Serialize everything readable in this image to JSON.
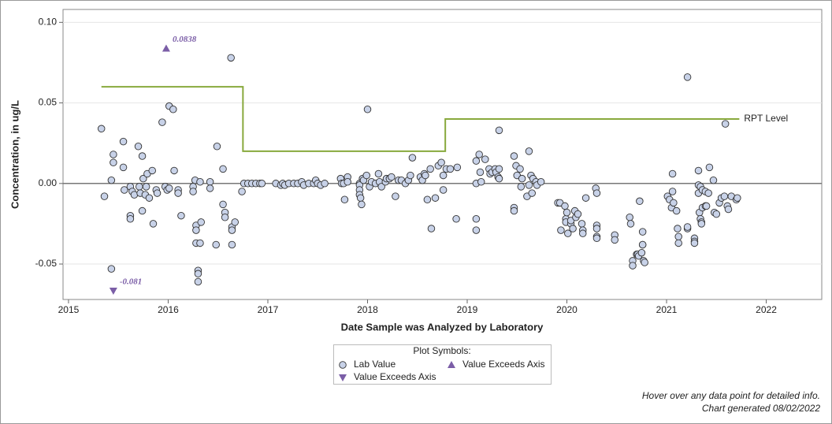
{
  "chart_data": {
    "type": "scatter",
    "y_label": "Concentration, in ug/L",
    "x_label": "Date Sample was Analyzed by Laboratory",
    "xlim": [
      2014.945,
      2022.557
    ],
    "xticks": [
      2015,
      2016,
      2017,
      2018,
      2019,
      2020,
      2021,
      2022
    ],
    "ylim": [
      -0.072,
      0.108
    ],
    "yticks": [
      {
        "value": -0.05,
        "label": "-0.05"
      },
      {
        "value": 0,
        "label": "0.00"
      },
      {
        "value": 0.05,
        "label": "0.05"
      },
      {
        "value": 0.1,
        "label": "0.10"
      }
    ],
    "grid": true,
    "reference_line": 0,
    "series": [
      {
        "name": "Lab Value",
        "color": "#c8d2e8",
        "line": false,
        "x": [
          2015.33,
          2015.36,
          2015.43,
          2015.45,
          2015.45,
          2015.43,
          2015.55,
          2015.55,
          2015.56,
          2015.62,
          2015.62,
          2015.62,
          2015.64,
          2015.66,
          2015.7,
          2015.71,
          2015.72,
          2015.74,
          2015.74,
          2015.75,
          2015.77,
          2015.78,
          2015.79,
          2015.81,
          2015.84,
          2015.85,
          2015.88,
          2015.89,
          2015.94,
          2015.97,
          2015.99,
          2016.01,
          2016.01,
          2016.05,
          2016.06,
          2016.1,
          2016.1,
          2016.13,
          2016.25,
          2016.25,
          2016.27,
          2016.28,
          2016.28,
          2016.28,
          2016.3,
          2016.3,
          2016.3,
          2016.32,
          2016.32,
          2016.33,
          2016.42,
          2016.42,
          2016.48,
          2016.49,
          2016.55,
          2016.55,
          2016.57,
          2016.57,
          2016.63,
          2016.64,
          2016.64,
          2016.64,
          2016.67,
          2016.74,
          2016.76,
          2016.8,
          2016.84,
          2016.88,
          2016.92,
          2016.94,
          2017.08,
          2017.13,
          2017.15,
          2017.17,
          2017.21,
          2017.26,
          2017.3,
          2017.34,
          2017.36,
          2017.41,
          2017.46,
          2017.48,
          2017.5,
          2017.53,
          2017.57,
          2017.73,
          2017.74,
          2017.76,
          2017.77,
          2017.8,
          2017.8,
          2017.92,
          2017.92,
          2017.92,
          2017.92,
          2017.93,
          2017.94,
          2017.95,
          2017.96,
          2017.99,
          2018.0,
          2018.02,
          2018.04,
          2018.08,
          2018.11,
          2018.12,
          2018.14,
          2018.18,
          2018.19,
          2018.22,
          2018.24,
          2018.28,
          2018.31,
          2018.34,
          2018.38,
          2018.41,
          2018.43,
          2018.45,
          2018.53,
          2018.55,
          2018.57,
          2018.58,
          2018.6,
          2018.63,
          2018.64,
          2018.68,
          2018.71,
          2018.74,
          2018.76,
          2018.76,
          2018.79,
          2018.83,
          2018.89,
          2018.9,
          2019.09,
          2019.09,
          2019.09,
          2019.09,
          2019.12,
          2019.13,
          2019.14,
          2019.18,
          2019.22,
          2019.23,
          2019.25,
          2019.28,
          2019.29,
          2019.31,
          2019.32,
          2019.32,
          2019.32,
          2019.47,
          2019.47,
          2019.47,
          2019.49,
          2019.5,
          2019.53,
          2019.54,
          2019.55,
          2019.6,
          2019.62,
          2019.62,
          2019.64,
          2019.65,
          2019.66,
          2019.69,
          2019.7,
          2019.74,
          2019.91,
          2019.93,
          2019.94,
          2019.98,
          2019.99,
          2019.99,
          2020.0,
          2020.01,
          2020.04,
          2020.04,
          2020.06,
          2020.08,
          2020.09,
          2020.11,
          2020.15,
          2020.16,
          2020.16,
          2020.19,
          2020.29,
          2020.3,
          2020.3,
          2020.3,
          2020.3,
          2020.3,
          2020.48,
          2020.48,
          2020.63,
          2020.64,
          2020.66,
          2020.66,
          2020.7,
          2020.71,
          2020.72,
          2020.73,
          2020.75,
          2020.76,
          2020.76,
          2020.76,
          2020.77,
          2020.78,
          2021.01,
          2021.03,
          2021.05,
          2021.06,
          2021.06,
          2021.07,
          2021.1,
          2021.11,
          2021.12,
          2021.12,
          2021.21,
          2021.21,
          2021.21,
          2021.28,
          2021.28,
          2021.28,
          2021.32,
          2021.32,
          2021.32,
          2021.33,
          2021.34,
          2021.34,
          2021.35,
          2021.35,
          2021.36,
          2021.36,
          2021.39,
          2021.39,
          2021.4,
          2021.42,
          2021.43,
          2021.47,
          2021.48,
          2021.5,
          2021.53,
          2021.55,
          2021.58,
          2021.59,
          2021.61,
          2021.62,
          2021.65,
          2021.7,
          2021.71
        ],
        "values": [
          0.034,
          -0.008,
          0.002,
          0.018,
          0.013,
          -0.053,
          0.026,
          0.01,
          -0.004,
          -0.002,
          -0.02,
          -0.022,
          -0.005,
          -0.007,
          0.023,
          -0.002,
          -0.006,
          -0.017,
          0.017,
          0.003,
          -0.007,
          -0.002,
          0.006,
          -0.009,
          0.008,
          -0.025,
          -0.004,
          -0.006,
          0.038,
          -0.002,
          -0.004,
          0.048,
          -0.003,
          0.046,
          0.008,
          -0.004,
          -0.006,
          -0.02,
          -0.002,
          -0.005,
          0.002,
          -0.026,
          -0.029,
          -0.037,
          -0.054,
          -0.056,
          -0.061,
          0.001,
          -0.037,
          -0.024,
          0.001,
          -0.003,
          -0.038,
          0.023,
          0.009,
          -0.013,
          -0.018,
          -0.021,
          0.078,
          -0.027,
          -0.029,
          -0.038,
          -0.024,
          -0.005,
          0,
          0,
          0,
          0,
          0,
          0,
          0,
          -0.001,
          0,
          -0.001,
          0,
          0,
          0,
          0.001,
          -0.001,
          0,
          0,
          0.002,
          0,
          -0.001,
          0,
          0.003,
          0,
          0,
          -0.01,
          0.004,
          0.001,
          0,
          -0.001,
          -0.004,
          -0.007,
          -0.009,
          -0.013,
          0.003,
          0.002,
          0.005,
          0.046,
          -0.002,
          0.001,
          0,
          0.006,
          0.001,
          -0.002,
          0.001,
          0.003,
          0.003,
          0.004,
          -0.008,
          0.002,
          0.002,
          0,
          0.002,
          0.005,
          0.016,
          0.004,
          0.002,
          0.006,
          0.005,
          -0.01,
          0.009,
          -0.028,
          -0.009,
          0.011,
          0.013,
          0.005,
          -0.004,
          0.009,
          0.009,
          -0.022,
          0.01,
          0,
          -0.029,
          -0.022,
          0.014,
          0.018,
          0.007,
          0.001,
          0.015,
          0.009,
          0.006,
          0.007,
          0.009,
          0.007,
          0.004,
          0.009,
          0.003,
          0.033,
          0.017,
          -0.015,
          -0.017,
          0.011,
          0.005,
          0.009,
          -0.002,
          0.003,
          -0.008,
          0.02,
          -0.001,
          0.005,
          -0.006,
          0.003,
          0.001,
          -0.001,
          0.001,
          -0.012,
          -0.012,
          -0.029,
          -0.014,
          -0.022,
          -0.024,
          -0.018,
          -0.031,
          -0.025,
          -0.023,
          -0.028,
          -0.017,
          -0.021,
          -0.019,
          -0.025,
          -0.029,
          -0.031,
          -0.009,
          -0.003,
          -0.006,
          -0.026,
          -0.028,
          -0.033,
          -0.034,
          -0.032,
          -0.035,
          -0.021,
          -0.025,
          -0.048,
          -0.051,
          -0.044,
          -0.044,
          -0.045,
          -0.011,
          -0.043,
          -0.03,
          -0.038,
          -0.038,
          -0.048,
          -0.049,
          -0.008,
          -0.01,
          -0.015,
          0.006,
          -0.005,
          -0.012,
          -0.017,
          -0.028,
          -0.033,
          -0.037,
          0.066,
          -0.028,
          -0.027,
          -0.034,
          -0.036,
          -0.037,
          0.008,
          -0.001,
          -0.006,
          -0.018,
          -0.002,
          -0.022,
          -0.024,
          -0.025,
          -0.004,
          -0.015,
          -0.014,
          -0.005,
          -0.014,
          -0.006,
          0.01,
          0.002,
          -0.018,
          -0.019,
          -0.012,
          -0.009,
          -0.008,
          0.037,
          -0.014,
          -0.016,
          -0.008,
          -0.01,
          -0.009
        ]
      },
      {
        "name": "RPT Level",
        "color": "#88a93d",
        "line": true,
        "x": [
          2015.33,
          2016.75,
          2016.75,
          2018.78,
          2018.78,
          2021.73
        ],
        "values": [
          0.06,
          0.06,
          0.02,
          0.02,
          0.04,
          0.04
        ]
      }
    ],
    "annotations": [
      {
        "text": "0.0838",
        "x": 2015.98,
        "value": 0.0838,
        "marker": "up",
        "legend": "Value Exceeds Axis",
        "color": "#7b5ea7"
      },
      {
        "text": "-0.081",
        "x": 2015.45,
        "value": -0.081,
        "marker": "down",
        "legend": "Value Exceeds Axis",
        "color": "#7b5ea7"
      }
    ],
    "legend_title": "Plot Symbols:",
    "footnotes": [
      "Hover over any data point for detailed info.",
      "Chart generated 08/02/2022"
    ]
  }
}
